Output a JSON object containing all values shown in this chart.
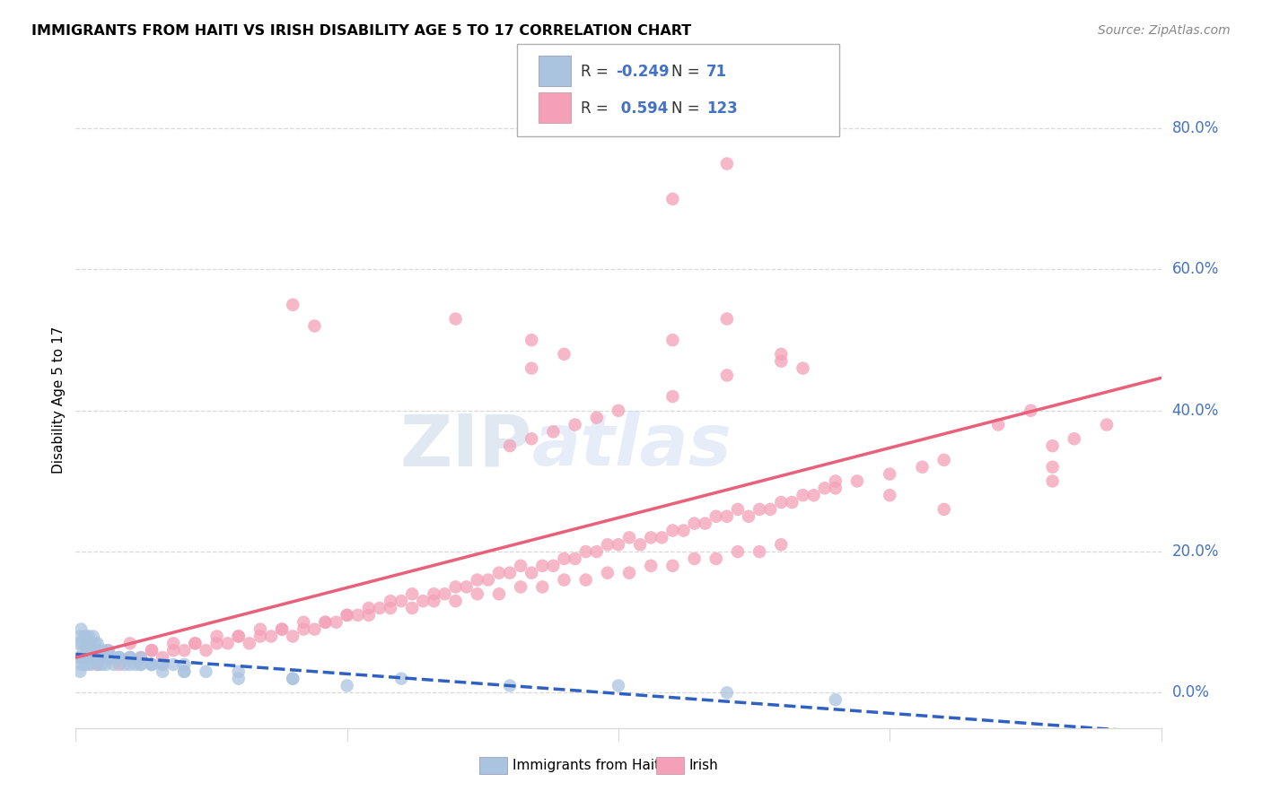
{
  "title": "IMMIGRANTS FROM HAITI VS IRISH DISABILITY AGE 5 TO 17 CORRELATION CHART",
  "source": "Source: ZipAtlas.com",
  "ylabel": "Disability Age 5 to 17",
  "ytick_values": [
    0,
    20,
    40,
    60,
    80
  ],
  "xlim": [
    0,
    100
  ],
  "ylim": [
    -5,
    90
  ],
  "legend_haiti_label": "Immigrants from Haiti",
  "legend_irish_label": "Irish",
  "R_haiti": -0.249,
  "N_haiti": 71,
  "R_irish": 0.594,
  "N_irish": 123,
  "haiti_color": "#aac4e0",
  "irish_color": "#f4a0b8",
  "haiti_line_color": "#3060c0",
  "irish_line_color": "#e8607a",
  "watermark_zip_color": "#c8d8e8",
  "watermark_atlas_color": "#c8d8f0",
  "grid_color": "#d8d8d8",
  "axis_label_color": "#4472c4",
  "haiti_x": [
    0.3,
    0.5,
    0.7,
    0.9,
    1.1,
    1.3,
    1.5,
    0.4,
    0.6,
    0.8,
    1.0,
    1.2,
    1.4,
    1.6,
    1.8,
    2.0,
    2.2,
    2.4,
    2.6,
    2.8,
    3.0,
    3.5,
    4.0,
    4.5,
    5.0,
    5.5,
    6.0,
    7.0,
    8.0,
    9.0,
    10.0,
    12.0,
    15.0,
    20.0,
    25.0,
    0.2,
    0.4,
    0.6,
    0.8,
    1.0,
    1.2,
    1.4,
    1.6,
    1.8,
    2.0,
    2.5,
    3.0,
    3.5,
    4.0,
    5.0,
    6.0,
    7.0,
    8.0,
    10.0,
    15.0,
    20.0,
    30.0,
    40.0,
    50.0,
    60.0,
    70.0,
    0.5,
    1.0,
    2.0,
    3.0,
    4.0,
    5.0,
    6.0,
    7.0,
    8.0,
    10.0
  ],
  "haiti_y": [
    5,
    4,
    6,
    5,
    4,
    6,
    5,
    3,
    5,
    4,
    6,
    5,
    4,
    6,
    5,
    4,
    5,
    4,
    5,
    4,
    5,
    4,
    5,
    4,
    4,
    4,
    4,
    4,
    3,
    4,
    3,
    3,
    2,
    2,
    1,
    7,
    8,
    7,
    8,
    7,
    8,
    7,
    8,
    7,
    6,
    6,
    5,
    5,
    5,
    5,
    4,
    4,
    4,
    3,
    3,
    2,
    2,
    1,
    1,
    0,
    -1,
    9,
    8,
    7,
    6,
    5,
    5,
    5,
    4,
    4,
    4
  ],
  "irish_x": [
    2,
    3,
    4,
    5,
    6,
    7,
    8,
    9,
    10,
    11,
    12,
    13,
    14,
    15,
    16,
    17,
    18,
    19,
    20,
    21,
    22,
    23,
    24,
    25,
    26,
    27,
    28,
    29,
    30,
    31,
    32,
    33,
    34,
    35,
    36,
    37,
    38,
    39,
    40,
    41,
    42,
    43,
    44,
    45,
    46,
    47,
    48,
    49,
    50,
    51,
    52,
    53,
    54,
    55,
    56,
    57,
    58,
    59,
    60,
    61,
    62,
    63,
    64,
    65,
    66,
    67,
    68,
    69,
    70,
    72,
    75,
    78,
    80,
    85,
    88,
    90,
    92,
    95,
    3,
    5,
    7,
    9,
    11,
    13,
    15,
    17,
    19,
    21,
    23,
    25,
    27,
    29,
    31,
    33,
    35,
    37,
    39,
    41,
    43,
    45,
    47,
    49,
    51,
    53,
    55,
    57,
    59,
    61,
    63,
    65,
    40,
    42,
    44,
    46,
    48,
    50,
    55,
    60,
    65,
    70,
    75,
    80,
    90
  ],
  "irish_y": [
    4,
    5,
    4,
    5,
    5,
    6,
    5,
    6,
    6,
    7,
    6,
    7,
    7,
    8,
    7,
    8,
    8,
    9,
    8,
    9,
    9,
    10,
    10,
    11,
    11,
    12,
    12,
    13,
    13,
    14,
    13,
    14,
    14,
    15,
    15,
    16,
    16,
    17,
    17,
    18,
    17,
    18,
    18,
    19,
    19,
    20,
    20,
    21,
    21,
    22,
    21,
    22,
    22,
    23,
    23,
    24,
    24,
    25,
    25,
    26,
    25,
    26,
    26,
    27,
    27,
    28,
    28,
    29,
    29,
    30,
    31,
    32,
    33,
    38,
    40,
    35,
    36,
    38,
    6,
    7,
    6,
    7,
    7,
    8,
    8,
    9,
    9,
    10,
    10,
    11,
    11,
    12,
    12,
    13,
    13,
    14,
    14,
    15,
    15,
    16,
    16,
    17,
    17,
    18,
    18,
    19,
    19,
    20,
    20,
    21,
    35,
    36,
    37,
    38,
    39,
    40,
    42,
    45,
    48,
    30,
    28,
    26,
    32
  ],
  "irish_outliers_x": [
    35,
    42,
    55,
    60,
    20,
    22,
    42,
    45,
    55,
    60,
    65,
    67,
    90
  ],
  "irish_outliers_y": [
    53,
    50,
    70,
    75,
    55,
    52,
    46,
    48,
    50,
    53,
    47,
    46,
    30
  ]
}
